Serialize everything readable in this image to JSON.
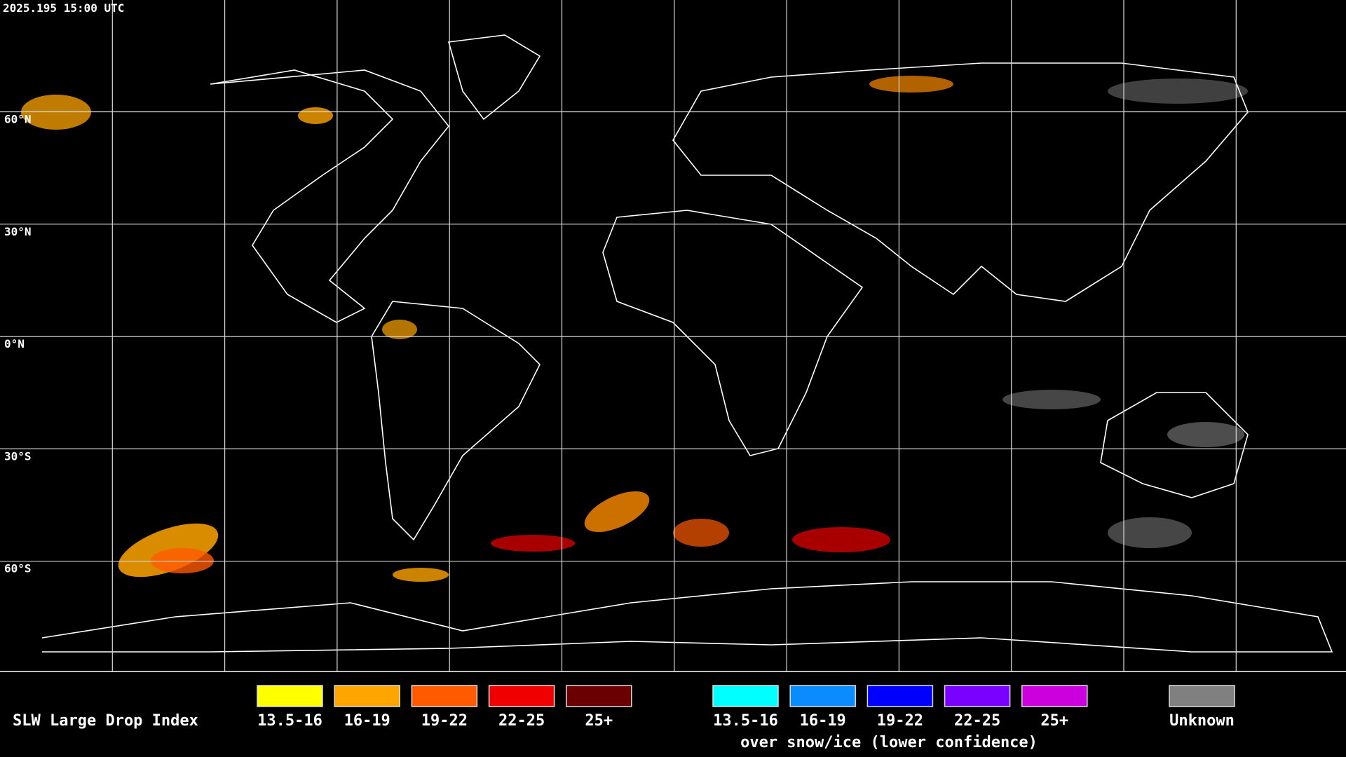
{
  "header": {
    "timestamp": "2025.195 15:00 UTC"
  },
  "map": {
    "lat_labels": [
      "60°N",
      "30°N",
      "0°N",
      "30°S",
      "60°S"
    ]
  },
  "legend": {
    "title": "SLW Large Drop Index",
    "groups": [
      {
        "items": [
          {
            "label": "13.5-16",
            "color": "#ffff00"
          },
          {
            "label": "16-19",
            "color": "#ffa500"
          },
          {
            "label": "19-22",
            "color": "#ff5a00"
          },
          {
            "label": "22-25",
            "color": "#f00000"
          },
          {
            "label": "25+",
            "color": "#6a0000"
          }
        ]
      },
      {
        "caption": "over snow/ice (lower confidence)",
        "items": [
          {
            "label": "13.5-16",
            "color": "#00ffff"
          },
          {
            "label": "16-19",
            "color": "#0a8cff"
          },
          {
            "label": "19-22",
            "color": "#0000ff"
          },
          {
            "label": "22-25",
            "color": "#7a00ff"
          },
          {
            "label": "25+",
            "color": "#cc00dd"
          }
        ]
      },
      {
        "items": [
          {
            "label": "Unknown",
            "color": "#808080"
          }
        ]
      }
    ]
  }
}
